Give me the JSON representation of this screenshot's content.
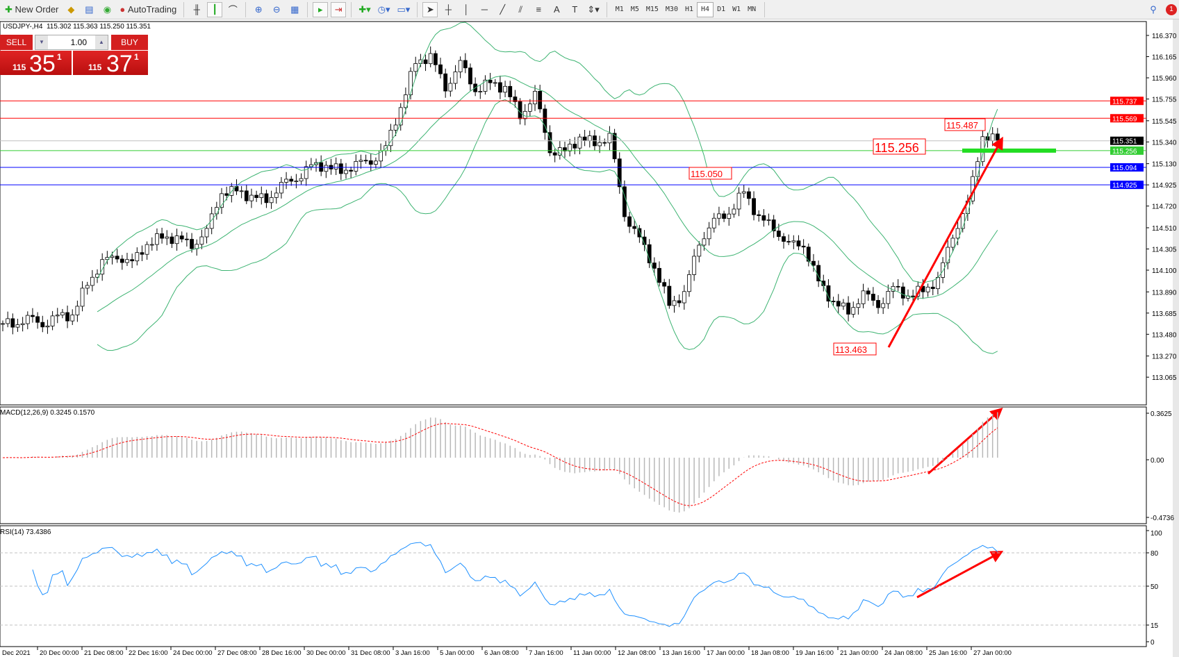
{
  "toolbar": {
    "new_order": "New Order",
    "autotrading": "AutoTrading",
    "timeframes": [
      "M1",
      "M5",
      "M15",
      "M30",
      "H1",
      "H4",
      "D1",
      "W1",
      "MN"
    ],
    "active_timeframe": "H4",
    "notification_count": "1"
  },
  "chart": {
    "info": "USDJPY-,H4  115.302 115.363 115.250 115.351",
    "symbol": "USDJPY-",
    "timeframe": "H4"
  },
  "trade_panel": {
    "sell_label": "SELL",
    "buy_label": "BUY",
    "lot": "1.00",
    "sell_small": "115",
    "sell_big": "35",
    "sell_pip": "1",
    "buy_small": "115",
    "buy_big": "37",
    "buy_pip": "1"
  },
  "price_axis": [
    "116.370",
    "116.165",
    "115.960",
    "115.755",
    "115.545",
    "115.340",
    "115.130",
    "114.925",
    "114.720",
    "114.510",
    "114.305",
    "114.100",
    "113.890",
    "113.685",
    "113.480",
    "113.270",
    "113.065"
  ],
  "hlines": [
    {
      "price": "115.737",
      "color": "#ff0000"
    },
    {
      "price": "115.569",
      "color": "#ff0000"
    },
    {
      "price": "115.351",
      "color": "#000000",
      "line": "#c0c0c0"
    },
    {
      "price": "115.256",
      "color": "#32cd32"
    },
    {
      "price": "115.094",
      "color": "#0000ff"
    },
    {
      "price": "114.925",
      "color": "#0000ff"
    }
  ],
  "annotations": [
    "115.487",
    "115.256",
    "115.050",
    "113.463"
  ],
  "macd": {
    "label": "MACD(12,26,9) 0.3245 0.1570",
    "axis": [
      "0.3625",
      "0.00",
      "-0.4736"
    ]
  },
  "rsi": {
    "label": "RSI(14) 73.4386",
    "axis": [
      "100",
      "80",
      "50",
      "15",
      "0"
    ],
    "levels": [
      80,
      50,
      15
    ]
  },
  "dates": [
    "Dec 2021",
    "20 Dec 00:00",
    "21 Dec 08:00",
    "22 Dec 16:00",
    "24 Dec 00:00",
    "27 Dec 08:00",
    "28 Dec 16:00",
    "30 Dec 00:00",
    "31 Dec 08:00",
    "3 Jan 16:00",
    "5 Jan 00:00",
    "6 Jan 08:00",
    "7 Jan 16:00",
    "11 Jan 00:00",
    "12 Jan 08:00",
    "13 Jan 16:00",
    "17 Jan 00:00",
    "18 Jan 08:00",
    "19 Jan 16:00",
    "21 Jan 00:00",
    "24 Jan 08:00",
    "25 Jan 16:00",
    "27 Jan 00:00"
  ],
  "chart_data": {
    "type": "candlestick",
    "indicators": [
      "Bollinger Bands",
      "MACD(12,26,9)",
      "RSI(14)"
    ],
    "price_range": [
      113.065,
      116.37
    ],
    "approx_closes": [
      113.579,
      113.592,
      113.613,
      113.592,
      113.646,
      113.66,
      113.985,
      114.155,
      114.256,
      114.155,
      114.358,
      114.426,
      114.392,
      114.358,
      114.459,
      114.866,
      114.866,
      114.798,
      114.798,
      114.9,
      115.001,
      115.103,
      115.103,
      115.069,
      115.103,
      115.171,
      115.272,
      115.679,
      116.119,
      116.153,
      115.882,
      116.085,
      115.848,
      115.916,
      115.848,
      115.611,
      115.781,
      115.272,
      115.239,
      115.374,
      115.34,
      115.374,
      114.663,
      114.392,
      114.121,
      113.782,
      113.85,
      114.392,
      114.561,
      114.663,
      114.866,
      114.595,
      114.527,
      114.324,
      114.358,
      113.985,
      113.782,
      113.714,
      113.85,
      113.782,
      113.917,
      113.85,
      113.917,
      113.985,
      114.459,
      114.73,
      115.408,
      115.351
    ]
  }
}
